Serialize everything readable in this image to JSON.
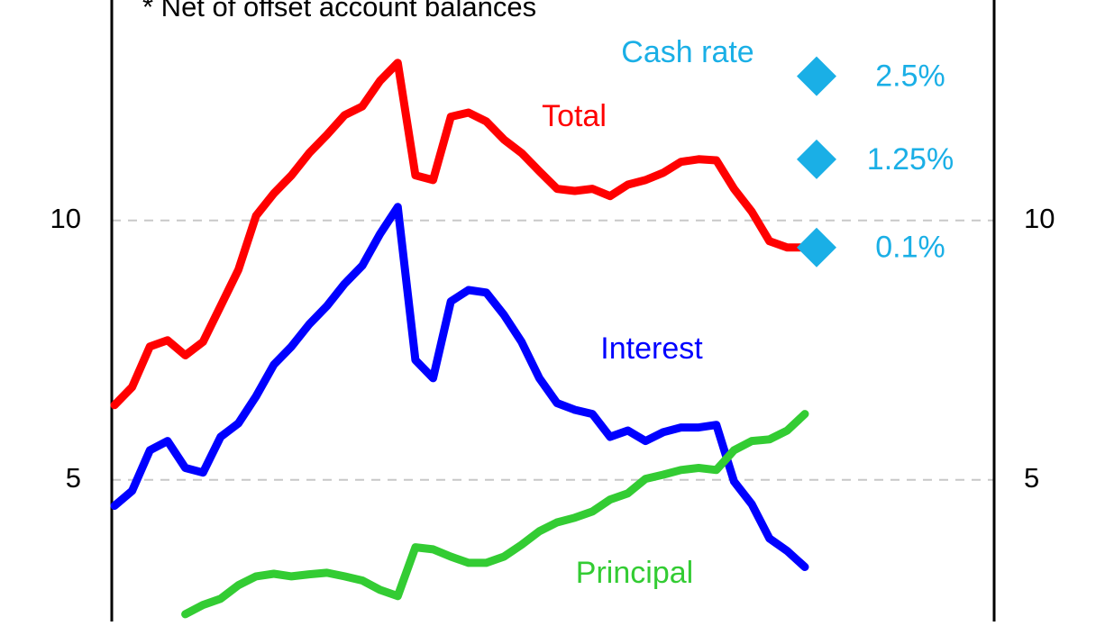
{
  "chart_data": {
    "type": "line",
    "footnote": "*  Net of offset account balances",
    "categories": [
      null,
      null,
      null,
      null,
      null,
      null,
      null,
      null,
      null,
      null,
      null,
      null,
      null,
      null,
      null,
      null,
      null,
      null,
      null,
      null,
      null,
      null,
      null,
      null,
      null,
      null,
      null,
      null,
      null,
      null,
      null,
      null,
      null,
      null,
      null,
      null,
      null,
      null,
      null,
      null
    ],
    "series": [
      {
        "name": "Total",
        "color": "#ff0000",
        "values": [
          6.44,
          6.79,
          7.57,
          7.69,
          7.4,
          7.66,
          8.35,
          9.05,
          10.09,
          10.52,
          10.87,
          11.3,
          11.65,
          12.03,
          12.2,
          12.69,
          13.04,
          10.87,
          10.78,
          12.0,
          12.08,
          11.91,
          11.56,
          11.3,
          10.95,
          10.61,
          10.57,
          10.61,
          10.47,
          10.69,
          10.78,
          10.92,
          11.13,
          11.18,
          11.16,
          10.61,
          10.17,
          9.6,
          9.48,
          9.48
        ]
      },
      {
        "name": "Interest",
        "color": "#0000ff",
        "values": [
          4.5,
          4.79,
          5.57,
          5.75,
          5.23,
          5.14,
          5.83,
          6.09,
          6.61,
          7.22,
          7.57,
          8.0,
          8.35,
          8.78,
          9.13,
          9.74,
          10.26,
          7.31,
          6.96,
          8.44,
          8.66,
          8.61,
          8.18,
          7.66,
          6.96,
          6.48,
          6.35,
          6.27,
          5.83,
          5.95,
          5.75,
          5.92,
          6.01,
          6.01,
          6.06,
          4.97,
          4.53,
          3.87,
          3.63,
          3.32
        ]
      },
      {
        "name": "Principal",
        "color": "#33cc33",
        "values": [
          null,
          null,
          null,
          null,
          2.41,
          2.59,
          2.71,
          2.97,
          3.14,
          3.19,
          3.14,
          3.18,
          3.21,
          3.14,
          3.06,
          2.88,
          2.76,
          3.7,
          3.66,
          3.52,
          3.4,
          3.4,
          3.52,
          3.75,
          4.01,
          4.18,
          4.27,
          4.39,
          4.62,
          4.74,
          5.02,
          5.1,
          5.19,
          5.23,
          5.19,
          5.57,
          5.75,
          5.78,
          5.95,
          6.27
        ]
      }
    ],
    "scenario_title": "Cash rate",
    "scenario_color": "#1aafe6",
    "scenarios": [
      {
        "label": "2.5%",
        "value": 12.78
      },
      {
        "label": "1.25%",
        "value": 11.18
      },
      {
        "label": "0.1%",
        "value": 9.48
      }
    ],
    "ylim": [
      2.27,
      14.25
    ],
    "yticks": [
      5,
      10
    ],
    "y2lim": [
      2.27,
      14.25
    ],
    "y2ticks": [
      5,
      10
    ],
    "grid": true
  }
}
